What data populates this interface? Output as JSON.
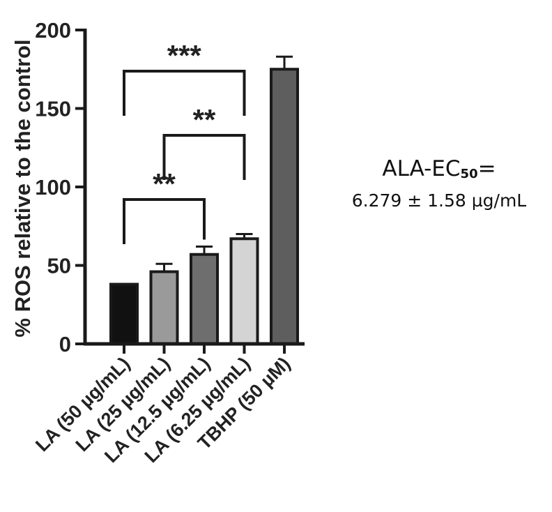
{
  "chart_data": {
    "type": "bar",
    "title": "",
    "xlabel": "",
    "ylabel": "% ROS relative to the control",
    "ylim": [
      0,
      200
    ],
    "yticks": [
      0,
      50,
      100,
      150,
      200
    ],
    "categories": [
      "LA (50 µg/mL)",
      "LA (25 µg/mL)",
      "LA (12.5 µg/mL)",
      "LA (6.25 µg/mL)",
      "TBHP (50 µM)"
    ],
    "values": [
      38,
      46,
      57,
      67,
      175
    ],
    "errors": [
      0.5,
      5,
      5,
      3,
      8
    ],
    "colors": [
      "#111111",
      "#9a9a9a",
      "#6e6e6e",
      "#d4d4d4",
      "#5e5e5e"
    ],
    "significance": [
      {
        "from": 0,
        "to": 3,
        "label": "***"
      },
      {
        "from": 1,
        "to": 3,
        "label": "**"
      },
      {
        "from": 0,
        "to": 2,
        "label": "**"
      }
    ],
    "grid": false,
    "legend": "none"
  },
  "annotation": {
    "line1_prefix": "ALA-EC",
    "line1_sub": "50",
    "line1_suffix": "=",
    "line2": "6.279 ± 1.58 µg/mL"
  }
}
